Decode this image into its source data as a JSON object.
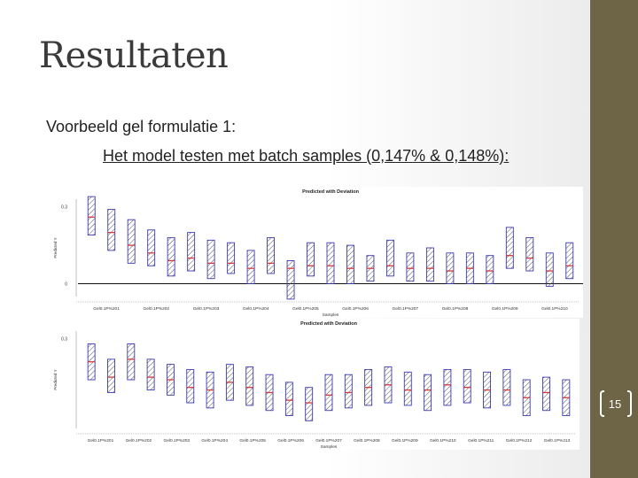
{
  "slide": {
    "title": "Resultaten",
    "line1": "Voorbeeld gel formulatie 1:",
    "line2": "Het model testen met batch samples (0,147% & 0,148%):",
    "page_number": "15"
  },
  "colors": {
    "box": "#3a3ab0",
    "mean": "#d23a3a",
    "sidebar": "#6e6546"
  },
  "chart_data": [
    {
      "type": "box",
      "title": "Predicted with Deviation",
      "xlabel": "Samples",
      "ylabel": "Predicted Y",
      "yticks": [
        "0.3",
        "",
        "0"
      ],
      "ytick_values": [
        0.3,
        0.15,
        0
      ],
      "ylim": [
        -0.05,
        0.33
      ],
      "reference_line": 0,
      "xtick_labels": [
        "Gel0.1P%201",
        "Gel0.1P%202",
        "Gel0.1P%203",
        "Gel0.1P%204",
        "Gel0.1P%205",
        "Gel0.1P%206",
        "Gel0.1P%207",
        "Gel0.1P%208",
        "Gel0.1P%209",
        "Gel0.1P%210"
      ],
      "low": [
        0.19,
        0.13,
        0.08,
        0.07,
        0.03,
        0.05,
        0.02,
        0.04,
        0.0,
        0.04,
        -0.06,
        0.03,
        0.0,
        0.0,
        0.01,
        0.03,
        0.01,
        0.01,
        0.0,
        0.0,
        0.0,
        0.06,
        0.05,
        -0.01,
        0.02
      ],
      "mean": [
        0.26,
        0.2,
        0.15,
        0.12,
        0.09,
        0.1,
        0.08,
        0.08,
        0.06,
        0.08,
        0.06,
        0.07,
        0.07,
        0.06,
        0.06,
        0.07,
        0.06,
        0.06,
        0.05,
        0.06,
        0.05,
        0.11,
        0.1,
        0.05,
        0.07
      ],
      "high": [
        0.34,
        0.29,
        0.25,
        0.21,
        0.18,
        0.2,
        0.17,
        0.16,
        0.13,
        0.18,
        0.09,
        0.16,
        0.16,
        0.15,
        0.11,
        0.17,
        0.12,
        0.14,
        0.12,
        0.12,
        0.11,
        0.22,
        0.18,
        0.12,
        0.16
      ]
    },
    {
      "type": "box",
      "title": "Predicted with Deviation",
      "xlabel": "Samples",
      "ylabel": "Predicted Y",
      "yticks": [
        "0.3",
        "",
        ""
      ],
      "ytick_values": [
        0.3,
        0.15,
        0
      ],
      "ylim": [
        -0.05,
        0.33
      ],
      "reference_line": null,
      "xtick_labels": [
        "Gel0.1P%201",
        "Gel0.1P%202",
        "Gel0.1P%203",
        "Gel0.1P%204",
        "Gel0.1P%205",
        "Gel0.1P%206",
        "Gel0.1P%207",
        "Gel0.1P%208",
        "Gel0.1P%209",
        "Gel0.1P%210",
        "Gel0.1P%211",
        "Gel0.1P%212",
        "Gel0.1P%213"
      ],
      "low": [
        0.14,
        0.09,
        0.14,
        0.1,
        0.08,
        0.05,
        0.03,
        0.06,
        0.04,
        0.02,
        0.0,
        -0.02,
        0.02,
        0.03,
        0.04,
        0.05,
        0.04,
        0.02,
        0.04,
        0.05,
        0.03,
        0.04,
        0.0,
        0.02,
        0.0
      ],
      "mean": [
        0.21,
        0.15,
        0.22,
        0.15,
        0.14,
        0.11,
        0.1,
        0.13,
        0.11,
        0.09,
        0.06,
        0.05,
        0.08,
        0.09,
        0.11,
        0.12,
        0.1,
        0.1,
        0.12,
        0.11,
        0.1,
        0.1,
        0.07,
        0.09,
        0.07
      ],
      "high": [
        0.28,
        0.22,
        0.28,
        0.22,
        0.2,
        0.18,
        0.17,
        0.2,
        0.19,
        0.16,
        0.13,
        0.11,
        0.16,
        0.16,
        0.18,
        0.19,
        0.17,
        0.16,
        0.18,
        0.18,
        0.17,
        0.18,
        0.14,
        0.15,
        0.14
      ]
    }
  ]
}
